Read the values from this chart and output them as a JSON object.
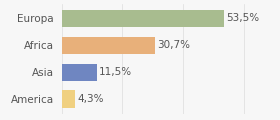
{
  "categories": [
    "Europa",
    "Africa",
    "Asia",
    "America"
  ],
  "values": [
    53.5,
    30.7,
    11.5,
    4.3
  ],
  "labels": [
    "53,5%",
    "30,7%",
    "11,5%",
    "4,3%"
  ],
  "bar_colors": [
    "#a8bc8f",
    "#e8b07a",
    "#6f86c1",
    "#f0d080"
  ],
  "background_color": "#f7f7f7",
  "xlim": [
    0,
    70
  ],
  "bar_height": 0.65,
  "label_fontsize": 7.5,
  "tick_fontsize": 7.5,
  "text_color": "#555555"
}
